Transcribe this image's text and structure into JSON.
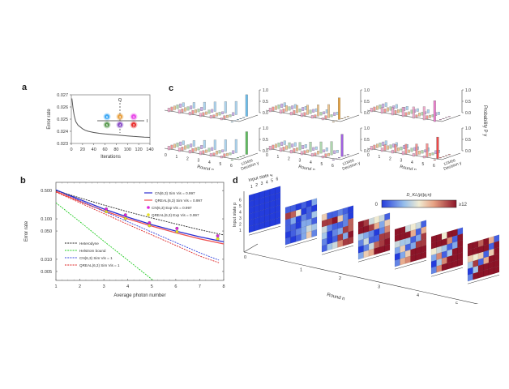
{
  "chart_data": [
    {
      "panel": "a",
      "type": "line",
      "title": "",
      "xlabel": "Iterations",
      "ylabel": "Error rate",
      "xlim": [
        0,
        140
      ],
      "ylim": [
        0.023,
        0.027
      ],
      "xticks": [
        0,
        20,
        40,
        60,
        80,
        100,
        120,
        140
      ],
      "yticks": [
        0.023,
        0.024,
        0.025,
        0.026,
        0.027
      ],
      "ytick_labels": [
        "0.023",
        "0.024",
        "0.025",
        "0.026",
        "0.027"
      ],
      "series": [
        {
          "name": "error-rate",
          "color": "#555555",
          "x": [
            1,
            3,
            5,
            8,
            12,
            16,
            20,
            25,
            30,
            40,
            50,
            60,
            70,
            80,
            90,
            100,
            110,
            120,
            130,
            140
          ],
          "y": [
            0.0267,
            0.0259,
            0.0253,
            0.0248,
            0.0245,
            0.02435,
            0.0242,
            0.02408,
            0.024,
            0.0239,
            0.02383,
            0.02378,
            0.02374,
            0.0237,
            0.02366,
            0.02362,
            0.02358,
            0.02355,
            0.02352,
            0.0235
          ]
        }
      ],
      "inset": {
        "axis_labels": {
          "vertical": "Q",
          "horizontal": "I"
        },
        "states": [
          {
            "label": "6",
            "row": 0,
            "col": 0,
            "color": "#3fa9f5"
          },
          {
            "label": "3",
            "row": 0,
            "col": 1,
            "color": "#e8a040"
          },
          {
            "label": "1",
            "row": 0,
            "col": 2,
            "color": "#e84ce8"
          },
          {
            "label": "5",
            "row": 1,
            "col": 0,
            "color": "#5a9a50"
          },
          {
            "label": "4",
            "row": 1,
            "col": 1,
            "color": "#8a4fc8"
          },
          {
            "label": "2",
            "row": 1,
            "col": 2,
            "color": "#e83030"
          }
        ]
      }
    },
    {
      "panel": "b",
      "type": "line",
      "xlabel": "Average photon number",
      "ylabel": "Error rate",
      "yscale": "log",
      "xlim": [
        1,
        8
      ],
      "ylim": [
        0.003,
        0.8
      ],
      "xticks": [
        1,
        2,
        3,
        4,
        5,
        6,
        7,
        8
      ],
      "yticks": [
        0.005,
        0.01,
        0.05,
        0.1,
        0.5
      ],
      "ytick_labels": [
        "0.005",
        "0.010",
        "0.050",
        "0.100",
        "0.500"
      ],
      "series": [
        {
          "name": "CN(6,3) Sim Vis = 0.997",
          "color": "#2a2ad0",
          "dash": false,
          "x": [
            1,
            2,
            3,
            4,
            5,
            6,
            7,
            8
          ],
          "y": [
            0.52,
            0.3,
            0.175,
            0.11,
            0.072,
            0.05,
            0.036,
            0.027
          ]
        },
        {
          "name": "QREAL(6,3) Sim Vis = 0.997",
          "color": "#f05050",
          "dash": false,
          "x": [
            1,
            2,
            3,
            4,
            5,
            6,
            7,
            8
          ],
          "y": [
            0.48,
            0.27,
            0.158,
            0.1,
            0.066,
            0.045,
            0.032,
            0.024
          ]
        },
        {
          "name": "Heterodyne",
          "color": "#222222",
          "dash": true,
          "x": [
            1,
            2,
            3,
            4,
            5,
            6,
            7,
            8
          ],
          "y": [
            0.5,
            0.33,
            0.22,
            0.15,
            0.105,
            0.075,
            0.054,
            0.04
          ]
        },
        {
          "name": "Helstrom bound",
          "color": "#22cc22",
          "dash": true,
          "x": [
            1,
            2,
            3,
            4,
            5,
            5.9
          ],
          "y": [
            0.25,
            0.085,
            0.028,
            0.0095,
            0.0032,
            0.0012
          ]
        },
        {
          "name": "CN(6,3) Sim Vis = 1",
          "color": "#3344dd",
          "dash": true,
          "x": [
            1,
            2,
            3,
            4,
            5,
            6,
            7,
            7.8
          ],
          "y": [
            0.52,
            0.28,
            0.155,
            0.085,
            0.047,
            0.026,
            0.0145,
            0.0095
          ]
        },
        {
          "name": "QREAL(6,3) Sim Vis = 1",
          "color": "#dd2222",
          "dash": true,
          "x": [
            1,
            2,
            3,
            4,
            5,
            6,
            7,
            7.8
          ],
          "y": [
            0.46,
            0.25,
            0.135,
            0.073,
            0.04,
            0.022,
            0.012,
            0.0082
          ]
        },
        {
          "name": "CN(6,3) Exp Vis = 0.997",
          "color": "#dd22dd",
          "marker": "circle",
          "x": [
            3.1,
            3.9,
            4.9,
            6.05,
            7.75
          ],
          "y": [
            0.175,
            0.125,
            0.08,
            0.058,
            0.038
          ]
        },
        {
          "name": "QREAL(6,3) Exp Vis = 0.997",
          "color": "#e8e020",
          "marker": "circle",
          "x": [
            3.1,
            3.9,
            4.9,
            6.05,
            7.75
          ],
          "y": [
            0.15,
            0.102,
            0.068,
            0.048,
            0.032
          ]
        }
      ],
      "legend_top_right": [
        "CN(6,3) Sim Vis = 0.997",
        "QREAL(6,3) Sim Vis = 0.997",
        "CN(6,3) Exp Vis = 0.997",
        "QREAL(6,3) Exp Vis = 0.997"
      ],
      "legend_bottom_left": [
        "Heterodyne",
        "Helstrom bound",
        "CN(6,3) Sim Vis = 1",
        "QREAL(6,3) Sim Vis = 1"
      ]
    },
    {
      "panel": "c",
      "type": "bar3d",
      "xlabel": "Round n",
      "ylabel": "Decision y",
      "zlabel": "Probability P",
      "zlabel_sub": "y",
      "round_ticks": [
        "0",
        "1",
        "2",
        "3",
        "4",
        "5",
        "6"
      ],
      "decision_ticks": [
        "1",
        "2",
        "3",
        "4",
        "5",
        "6"
      ],
      "zticks": [
        "0.0",
        "0.5",
        "1.0"
      ],
      "state_colors": [
        "#f2a0c8",
        "#f08080",
        "#f0c080",
        "#a0d0a0",
        "#c0a0e8",
        "#a0d0f0"
      ],
      "subplots": [
        {
          "true_state": 6,
          "final": [
            0.0,
            0.0,
            0.0,
            0.0,
            0.0,
            0.95
          ],
          "color": "#6cc0f0"
        },
        {
          "true_state": 5,
          "final": [
            0.0,
            0.0,
            0.0,
            0.0,
            0.0,
            1.0
          ],
          "color": "#60c060"
        },
        {
          "true_state": 3,
          "final": [
            0.0,
            0.0,
            0.95,
            0.0,
            0.0,
            0.0
          ],
          "color": "#f0a840"
        },
        {
          "true_state": 4,
          "final": [
            0.0,
            0.0,
            0.0,
            0.98,
            0.0,
            0.0
          ],
          "color": "#a060e0"
        },
        {
          "true_state": 1,
          "final": [
            0.92,
            0.0,
            0.0,
            0.0,
            0.0,
            0.0
          ],
          "color": "#f080d0"
        },
        {
          "true_state": 2,
          "final": [
            0.0,
            0.95,
            0.0,
            0.0,
            0.0,
            0.0
          ],
          "color": "#f04848"
        }
      ]
    },
    {
      "panel": "d",
      "type": "heatmap",
      "xlabel": "Input state q",
      "ylabel": "Input state p",
      "zlabel": "Round n",
      "colorbar_label": "D_KL(p||q;n)",
      "colorbar_min": "0",
      "colorbar_max": "≥12",
      "axis_ticks": [
        "1",
        "2",
        "3",
        "4",
        "5",
        "6"
      ],
      "round_ticks": [
        "0",
        "1",
        "2",
        "3",
        "4",
        "5",
        "6"
      ],
      "vmin": 0,
      "vmax": 12,
      "matrices": [
        [
          [
            0,
            0,
            0,
            0,
            0,
            0
          ],
          [
            0,
            0,
            0,
            0,
            0,
            0
          ],
          [
            0,
            0,
            0,
            0,
            0,
            0
          ],
          [
            0,
            0,
            0,
            0,
            0,
            0
          ],
          [
            0,
            0,
            0,
            0,
            0,
            0
          ],
          [
            0,
            0,
            0,
            0,
            0,
            0
          ]
        ],
        [
          [
            1,
            1,
            0,
            1,
            0,
            3
          ],
          [
            11,
            10,
            6,
            0,
            1,
            0
          ],
          [
            1,
            3,
            0,
            2,
            1,
            4
          ],
          [
            1,
            1,
            0,
            3,
            3,
            1
          ],
          [
            0,
            1,
            2,
            3,
            5,
            4
          ],
          [
            1,
            0,
            1,
            3,
            7,
            2
          ]
        ],
        [
          [
            7,
            1,
            1,
            2,
            1,
            0
          ],
          [
            11,
            11,
            12,
            7,
            2,
            0
          ],
          [
            5,
            2,
            1,
            1,
            2,
            10
          ],
          [
            4,
            0,
            2,
            3,
            11,
            10
          ],
          [
            2,
            0,
            1,
            11,
            3,
            12
          ],
          [
            1,
            4,
            5,
            9,
            11,
            11
          ]
        ],
        [
          [
            12,
            11,
            5,
            6,
            5,
            1
          ],
          [
            12,
            12,
            11,
            8,
            3,
            7
          ],
          [
            4,
            3,
            2,
            0,
            2,
            9
          ],
          [
            2,
            5,
            1,
            1,
            11,
            11
          ],
          [
            0,
            2,
            5,
            10,
            11,
            12
          ],
          [
            3,
            7,
            8,
            12,
            12,
            12
          ]
        ],
        [
          [
            12,
            12,
            5,
            6,
            5,
            1
          ],
          [
            12,
            12,
            12,
            8,
            1,
            8
          ],
          [
            5,
            4,
            4,
            1,
            3,
            11
          ],
          [
            3,
            7,
            1,
            3,
            11,
            11
          ],
          [
            0,
            3,
            7,
            12,
            12,
            12
          ],
          [
            2,
            8,
            9,
            12,
            12,
            12
          ]
        ],
        [
          [
            12,
            12,
            6,
            12,
            12,
            1
          ],
          [
            12,
            12,
            12,
            9,
            1,
            12
          ],
          [
            6,
            5,
            4,
            1,
            3,
            12
          ],
          [
            3,
            9,
            1,
            4,
            12,
            12
          ],
          [
            0,
            4,
            9,
            12,
            12,
            12
          ],
          [
            2,
            9,
            12,
            12,
            12,
            12
          ]
        ],
        [
          [
            12,
            12,
            10,
            12,
            8,
            1
          ],
          [
            12,
            12,
            12,
            12,
            1,
            12
          ],
          [
            7,
            6,
            7,
            1,
            7,
            12
          ],
          [
            4,
            11,
            1,
            8,
            12,
            12
          ],
          [
            0,
            4,
            12,
            12,
            12,
            12
          ],
          [
            2,
            12,
            12,
            12,
            12,
            12
          ]
        ]
      ]
    }
  ],
  "panel_labels": {
    "a": "a",
    "b": "b",
    "c": "c",
    "d": "d"
  }
}
